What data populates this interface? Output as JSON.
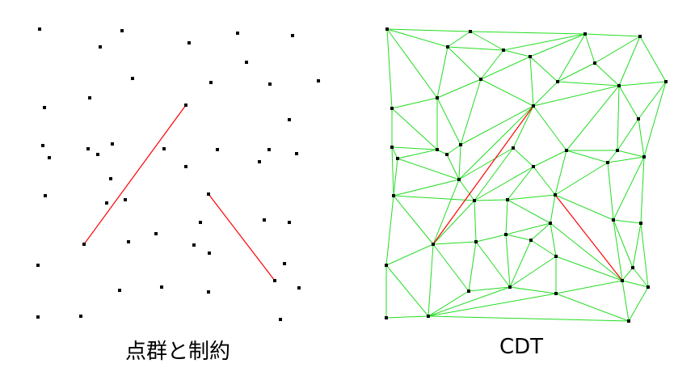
{
  "captions": {
    "left": "点群と制約",
    "right": "CDT"
  },
  "colors": {
    "point": "#000000",
    "constraint": "#ff0000",
    "edge": "#22dd22"
  }
}
